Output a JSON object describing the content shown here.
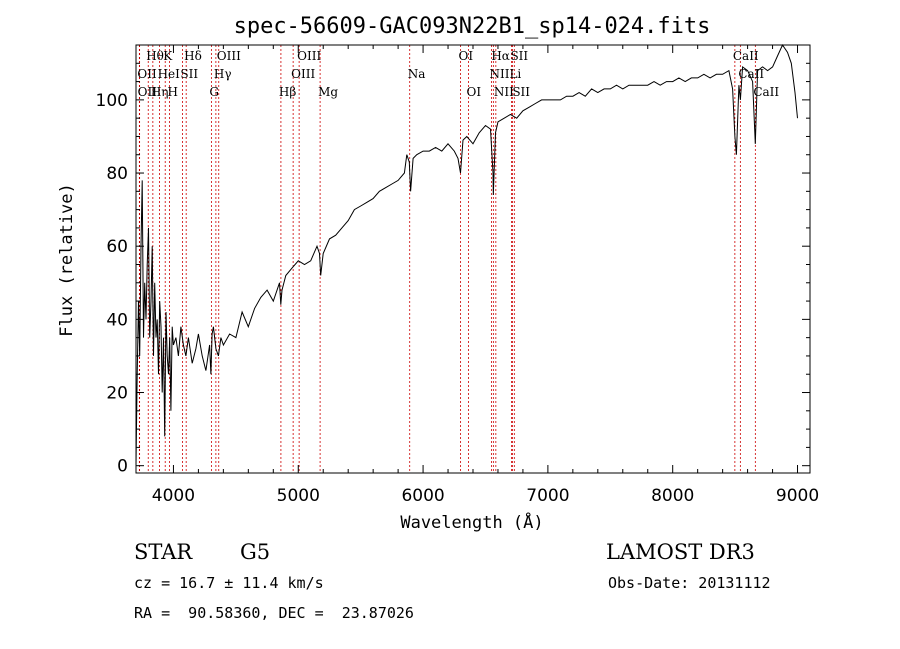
{
  "chart_data": {
    "type": "line",
    "title": "spec-56609-GAC093N22B1_sp14-024.fits",
    "xlabel": "Wavelength (Å)",
    "ylabel": "Flux (relative)",
    "xlim": [
      3700,
      9100
    ],
    "ylim": [
      -2,
      115
    ],
    "xticks": [
      4000,
      5000,
      6000,
      7000,
      8000,
      9000
    ],
    "yticks": [
      0,
      20,
      40,
      60,
      80,
      100
    ],
    "grid": false,
    "series": [
      {
        "x": [
          3700,
          3710,
          3720,
          3730,
          3740,
          3750,
          3760,
          3770,
          3780,
          3790,
          3800,
          3810,
          3820,
          3830,
          3840,
          3850,
          3860,
          3870,
          3880,
          3890,
          3900,
          3910,
          3920,
          3930,
          3940,
          3950,
          3960,
          3970,
          3980,
          3990,
          4000,
          4020,
          4040,
          4060,
          4080,
          4100,
          4120,
          4150,
          4180,
          4200,
          4230,
          4260,
          4290,
          4300,
          4310,
          4320,
          4340,
          4360,
          4380,
          4400,
          4450,
          4500,
          4550,
          4600,
          4650,
          4700,
          4750,
          4800,
          4850,
          4860,
          4870,
          4900,
          4950,
          5000,
          5050,
          5100,
          5150,
          5170,
          5180,
          5200,
          5250,
          5300,
          5350,
          5400,
          5450,
          5500,
          5550,
          5600,
          5650,
          5700,
          5750,
          5800,
          5850,
          5870,
          5890,
          5900,
          5920,
          5950,
          6000,
          6050,
          6100,
          6150,
          6200,
          6250,
          6280,
          6300,
          6320,
          6350,
          6400,
          6450,
          6500,
          6540,
          6560,
          6563,
          6580,
          6600,
          6650,
          6700,
          6750,
          6800,
          6850,
          6900,
          6950,
          7000,
          7050,
          7100,
          7150,
          7200,
          7250,
          7300,
          7350,
          7400,
          7450,
          7500,
          7550,
          7600,
          7650,
          7700,
          7750,
          7800,
          7850,
          7900,
          7950,
          8000,
          8050,
          8100,
          8150,
          8200,
          8250,
          8300,
          8350,
          8400,
          8450,
          8480,
          8498,
          8510,
          8530,
          8542,
          8560,
          8600,
          8640,
          8662,
          8680,
          8720,
          8760,
          8800,
          8840,
          8880,
          8920,
          8950,
          8980,
          9000
        ],
        "y": [
          0,
          25,
          45,
          30,
          60,
          78,
          35,
          50,
          40,
          55,
          65,
          35,
          45,
          60,
          30,
          50,
          35,
          40,
          25,
          45,
          38,
          20,
          35,
          8,
          42,
          30,
          25,
          35,
          15,
          38,
          33,
          35,
          30,
          38,
          33,
          30,
          35,
          28,
          32,
          36,
          30,
          26,
          33,
          25,
          36,
          38,
          32,
          30,
          35,
          33,
          36,
          35,
          42,
          38,
          43,
          46,
          48,
          45,
          50,
          44,
          48,
          52,
          54,
          56,
          55,
          56,
          60,
          58,
          52,
          58,
          62,
          63,
          65,
          67,
          70,
          71,
          72,
          73,
          75,
          76,
          77,
          78,
          80,
          85,
          83,
          75,
          84,
          85,
          86,
          86,
          87,
          86,
          88,
          86,
          84,
          80,
          89,
          90,
          88,
          91,
          93,
          92,
          80,
          74,
          91,
          94,
          95,
          96,
          95,
          97,
          98,
          99,
          100,
          100,
          100,
          100,
          101,
          101,
          102,
          101,
          103,
          102,
          103,
          103,
          104,
          103,
          104,
          104,
          104,
          104,
          105,
          104,
          105,
          105,
          106,
          105,
          106,
          106,
          107,
          106,
          107,
          107,
          108,
          103,
          90,
          85,
          104,
          100,
          109,
          108,
          105,
          88,
          108,
          109,
          108,
          109,
          112,
          115,
          113,
          110,
          102,
          95
        ]
      }
    ],
    "emission_lines": [
      {
        "label": "Hθ",
        "wl": 3798,
        "row": 0
      },
      {
        "label": "K",
        "wl": 3934,
        "row": 0
      },
      {
        "label": "Hδ",
        "wl": 4102,
        "row": 0
      },
      {
        "label": "OIII",
        "wl": 4363,
        "row": 0
      },
      {
        "label": "OIII",
        "wl": 5007,
        "row": 0
      },
      {
        "label": "OI",
        "wl": 6300,
        "row": 0
      },
      {
        "label": "Hα",
        "wl": 6563,
        "row": 0
      },
      {
        "label": "SII",
        "wl": 6716,
        "row": 0
      },
      {
        "label": "CaII",
        "wl": 8498,
        "row": 0
      },
      {
        "label": "OII",
        "wl": 3727,
        "row": 1
      },
      {
        "label": "HeI",
        "wl": 3889,
        "row": 1
      },
      {
        "label": "SII",
        "wl": 4072,
        "row": 1
      },
      {
        "label": "Hγ",
        "wl": 4340,
        "row": 1
      },
      {
        "label": "OIII",
        "wl": 4959,
        "row": 1
      },
      {
        "label": "Na",
        "wl": 5893,
        "row": 1
      },
      {
        "label": "NII",
        "wl": 6548,
        "row": 1
      },
      {
        "label": "Li",
        "wl": 6708,
        "row": 1
      },
      {
        "label": "CaII",
        "wl": 8542,
        "row": 1
      },
      {
        "label": "OII",
        "wl": 3729,
        "row": 2
      },
      {
        "label": "Hη",
        "wl": 3835,
        "row": 2
      },
      {
        "label": "H",
        "wl": 3968,
        "row": 2
      },
      {
        "label": "G",
        "wl": 4304,
        "row": 2
      },
      {
        "label": "Hβ",
        "wl": 4861,
        "row": 2
      },
      {
        "label": "Mg",
        "wl": 5175,
        "row": 2
      },
      {
        "label": "OI",
        "wl": 6364,
        "row": 2
      },
      {
        "label": "NII",
        "wl": 6583,
        "row": 2
      },
      {
        "label": "SII",
        "wl": 6731,
        "row": 2
      },
      {
        "label": "CaII",
        "wl": 8662,
        "row": 2
      }
    ]
  },
  "info": {
    "object_type": "STAR",
    "subclass": "G5",
    "survey": "LAMOST DR3",
    "redshift_text": "cz = 16.7 ± 11.4 km/s",
    "obs_date": "Obs-Date: 20131112",
    "coords": "RA =  90.58360, DEC =  23.87026"
  }
}
